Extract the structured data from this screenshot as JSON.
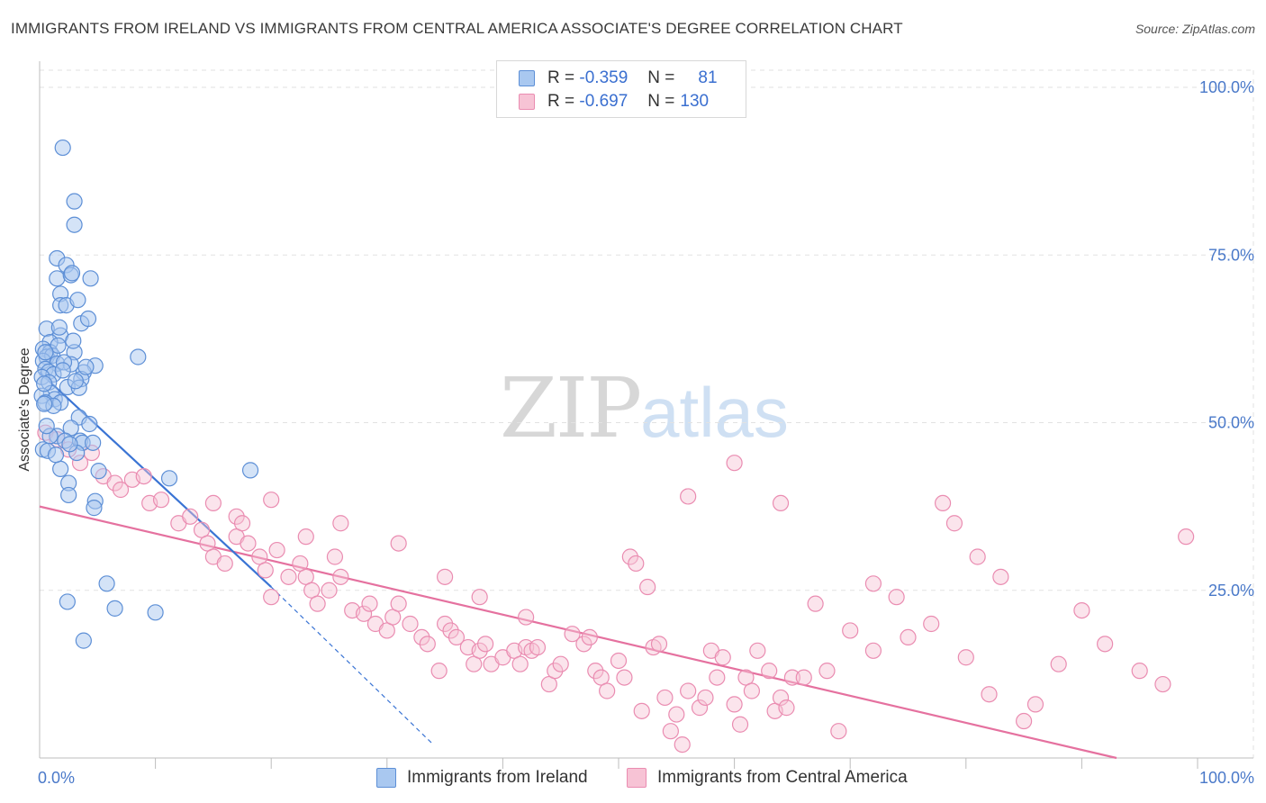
{
  "header": {
    "title": "IMMIGRANTS FROM IRELAND VS IMMIGRANTS FROM CENTRAL AMERICA ASSOCIATE'S DEGREE CORRELATION CHART",
    "source": "Source: ZipAtlas.com"
  },
  "watermark": {
    "zip": "ZIP",
    "atlas": "atlas"
  },
  "legend": {
    "rows": [
      {
        "r_label": "R =",
        "r_value": "-0.359",
        "n_label": "N =",
        "n_value": "81",
        "color": "#6fa3e6"
      },
      {
        "r_label": "R =",
        "r_value": "-0.697",
        "n_label": "N =",
        "n_value": "130",
        "color": "#f08cb0"
      }
    ]
  },
  "bottom_legend": {
    "ireland": "Immigrants from Ireland",
    "central_america": "Immigrants from Central America"
  },
  "colors": {
    "ireland_fill": "#a9c8f0",
    "ireland_stroke": "#5d8fd6",
    "ireland_line": "#3a74d4",
    "ca_fill": "#f7c3d5",
    "ca_stroke": "#ea8cb1",
    "ca_line": "#e5719f",
    "grid": "#e2e2e2",
    "tick_label": "#4a79c9"
  },
  "chart_data": {
    "type": "scatter",
    "title": "IMMIGRANTS FROM IRELAND VS IMMIGRANTS FROM CENTRAL AMERICA ASSOCIATE'S DEGREE CORRELATION CHART",
    "xlabel": "",
    "ylabel": "Associate's Degree",
    "xlim": [
      0,
      100
    ],
    "ylim": [
      0,
      100
    ],
    "x_tick_labels": [
      "0.0%",
      "100.0%"
    ],
    "y_ticks": [
      25,
      50,
      75,
      100
    ],
    "y_tick_labels": [
      "25.0%",
      "50.0%",
      "75.0%",
      "100.0%"
    ],
    "grid": true,
    "series": [
      {
        "name": "Immigrants from Ireland",
        "R": -0.359,
        "N": 81,
        "trend": {
          "x0": 0,
          "y0": 57.5,
          "x1": 20,
          "y1": 25.5,
          "dash_to_x": 34,
          "dash_to_y": 2
        },
        "points": [
          [
            2,
            91
          ],
          [
            3,
            83
          ],
          [
            3,
            79.5
          ],
          [
            1.5,
            74.5
          ],
          [
            2.3,
            73.5
          ],
          [
            1.5,
            71.5
          ],
          [
            2.7,
            72
          ],
          [
            4.4,
            71.5
          ],
          [
            2.8,
            72.3
          ],
          [
            1.8,
            69.2
          ],
          [
            1.8,
            67.5
          ],
          [
            2.3,
            67.5
          ],
          [
            3.6,
            64.8
          ],
          [
            4.2,
            65.5
          ],
          [
            0.6,
            64
          ],
          [
            1.8,
            63
          ],
          [
            0.9,
            62
          ],
          [
            0.3,
            61
          ],
          [
            0.9,
            60.5
          ],
          [
            0.6,
            59.8
          ],
          [
            1.1,
            60
          ],
          [
            3,
            60.5
          ],
          [
            8.5,
            59.8
          ],
          [
            0.3,
            59.2
          ],
          [
            1.5,
            58.8
          ],
          [
            2.7,
            58.7
          ],
          [
            4.8,
            58.5
          ],
          [
            0.5,
            58
          ],
          [
            0.8,
            57.6
          ],
          [
            3.8,
            57.5
          ],
          [
            1.2,
            57.2
          ],
          [
            0.2,
            56.8
          ],
          [
            3.6,
            56.5
          ],
          [
            0.8,
            56
          ],
          [
            2.4,
            55.3
          ],
          [
            3.4,
            55.2
          ],
          [
            1,
            54.4
          ],
          [
            0.2,
            54
          ],
          [
            1.3,
            53.5
          ],
          [
            0.5,
            53
          ],
          [
            1.8,
            53
          ],
          [
            3.4,
            50.8
          ],
          [
            4.3,
            49.8
          ],
          [
            2.7,
            49.2
          ],
          [
            1.5,
            48
          ],
          [
            0.9,
            48
          ],
          [
            3.5,
            47.3
          ],
          [
            2.2,
            47.3
          ],
          [
            3.7,
            47
          ],
          [
            4.6,
            47
          ],
          [
            0.3,
            46
          ],
          [
            0.7,
            45.8
          ],
          [
            3.2,
            45.5
          ],
          [
            5.1,
            42.8
          ],
          [
            11.2,
            41.7
          ],
          [
            18.2,
            42.9
          ],
          [
            1.8,
            43.1
          ],
          [
            2.5,
            41
          ],
          [
            2.5,
            39.2
          ],
          [
            4.8,
            38.3
          ],
          [
            4.7,
            37.3
          ],
          [
            5.8,
            26
          ],
          [
            2.4,
            23.3
          ],
          [
            6.5,
            22.3
          ],
          [
            10,
            21.7
          ],
          [
            3.8,
            17.5
          ],
          [
            0.4,
            55.8
          ],
          [
            1.6,
            61.5
          ],
          [
            2.9,
            62.2
          ],
          [
            0.5,
            60.5
          ],
          [
            2.1,
            59
          ],
          [
            3.1,
            56.2
          ],
          [
            1.2,
            52.5
          ],
          [
            0.6,
            49.5
          ],
          [
            2.6,
            46.8
          ],
          [
            1.4,
            45.2
          ],
          [
            0.4,
            52.8
          ],
          [
            2,
            57.8
          ],
          [
            4,
            58.3
          ],
          [
            1.7,
            64.2
          ],
          [
            3.3,
            68.3
          ]
        ]
      },
      {
        "name": "Immigrants from Central America",
        "R": -0.697,
        "N": 130,
        "trend": {
          "x0": 0,
          "y0": 37.5,
          "x1": 93,
          "y1": 0
        },
        "points": [
          [
            0.5,
            48.5
          ],
          [
            1.5,
            47.5
          ],
          [
            2.5,
            46
          ],
          [
            3.5,
            44
          ],
          [
            4.5,
            45.5
          ],
          [
            5.5,
            42
          ],
          [
            6.5,
            41
          ],
          [
            7,
            40
          ],
          [
            8,
            41.5
          ],
          [
            9,
            42
          ],
          [
            9.5,
            38
          ],
          [
            10.5,
            38.5
          ],
          [
            12,
            35
          ],
          [
            13,
            36
          ],
          [
            14,
            34
          ],
          [
            14.5,
            32
          ],
          [
            15,
            30
          ],
          [
            16,
            29
          ],
          [
            17,
            33
          ],
          [
            17,
            36
          ],
          [
            17.5,
            35
          ],
          [
            18,
            32
          ],
          [
            19,
            30
          ],
          [
            19.5,
            28
          ],
          [
            20,
            24
          ],
          [
            20.5,
            31
          ],
          [
            20,
            38.5
          ],
          [
            21.5,
            27
          ],
          [
            22.5,
            29
          ],
          [
            23,
            27
          ],
          [
            23.5,
            25
          ],
          [
            24,
            23
          ],
          [
            25,
            25
          ],
          [
            25.5,
            30
          ],
          [
            26,
            27
          ],
          [
            27,
            22
          ],
          [
            28,
            21.5
          ],
          [
            28.5,
            23
          ],
          [
            29,
            20
          ],
          [
            30,
            19
          ],
          [
            30.5,
            21
          ],
          [
            31,
            23
          ],
          [
            32,
            20
          ],
          [
            33,
            18
          ],
          [
            33.5,
            17
          ],
          [
            34.5,
            13
          ],
          [
            35,
            20
          ],
          [
            35.5,
            19
          ],
          [
            36,
            18
          ],
          [
            37,
            16.5
          ],
          [
            37.5,
            14
          ],
          [
            38,
            16
          ],
          [
            38.5,
            17
          ],
          [
            39,
            14
          ],
          [
            40,
            15
          ],
          [
            41,
            16
          ],
          [
            41.5,
            14
          ],
          [
            42,
            16.5
          ],
          [
            42.5,
            16
          ],
          [
            43,
            16.5
          ],
          [
            44,
            11
          ],
          [
            44.5,
            13
          ],
          [
            45,
            14
          ],
          [
            46,
            18.5
          ],
          [
            47,
            17
          ],
          [
            47.5,
            18
          ],
          [
            48,
            13
          ],
          [
            48.5,
            12
          ],
          [
            49,
            10
          ],
          [
            50,
            14.5
          ],
          [
            50.5,
            12
          ],
          [
            51,
            30
          ],
          [
            51.5,
            29
          ],
          [
            52,
            7
          ],
          [
            53,
            16.5
          ],
          [
            53.5,
            17
          ],
          [
            54,
            9
          ],
          [
            54.5,
            4
          ],
          [
            55,
            6.5
          ],
          [
            55.5,
            2
          ],
          [
            56,
            10
          ],
          [
            57,
            7.5
          ],
          [
            57.5,
            9
          ],
          [
            58,
            16
          ],
          [
            58.5,
            12
          ],
          [
            59,
            15
          ],
          [
            60,
            8
          ],
          [
            60.5,
            5
          ],
          [
            61,
            12
          ],
          [
            61.5,
            10
          ],
          [
            62,
            16
          ],
          [
            63,
            13
          ],
          [
            63.5,
            7
          ],
          [
            64,
            9
          ],
          [
            64.5,
            7.5
          ],
          [
            65,
            12
          ],
          [
            66,
            12
          ],
          [
            67,
            23
          ],
          [
            68,
            13
          ],
          [
            69,
            4
          ],
          [
            70,
            19
          ],
          [
            72,
            16
          ],
          [
            75,
            18
          ],
          [
            78,
            38
          ],
          [
            79,
            35
          ],
          [
            80,
            15
          ],
          [
            82,
            9.5
          ],
          [
            85,
            5.5
          ],
          [
            86,
            8
          ],
          [
            88,
            14
          ],
          [
            99,
            33
          ],
          [
            15,
            38
          ],
          [
            23,
            33
          ],
          [
            26,
            35
          ],
          [
            31,
            32
          ],
          [
            35,
            27
          ],
          [
            38,
            24
          ],
          [
            42,
            21
          ],
          [
            56,
            39
          ],
          [
            60,
            44
          ],
          [
            64,
            38
          ],
          [
            72,
            26
          ],
          [
            74,
            24
          ],
          [
            77,
            20
          ],
          [
            81,
            30
          ],
          [
            83,
            27
          ],
          [
            90,
            22
          ],
          [
            92,
            17
          ],
          [
            95,
            13
          ],
          [
            97,
            11
          ],
          [
            52.5,
            25.5
          ]
        ]
      }
    ]
  }
}
